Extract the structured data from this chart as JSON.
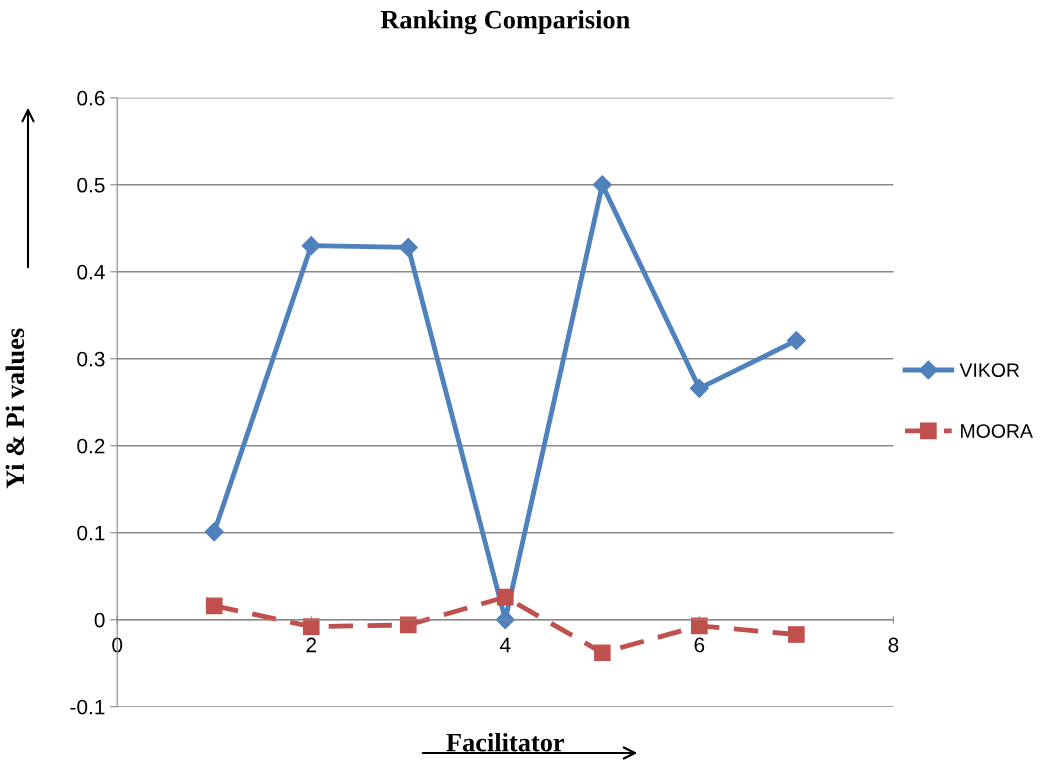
{
  "chart_data": {
    "type": "line",
    "title": "Ranking Comparision",
    "xlabel": "Facilitator",
    "ylabel": "Yi & Pi values",
    "x": [
      1,
      2,
      3,
      4,
      5,
      6,
      7
    ],
    "series": [
      {
        "name": "VIKOR",
        "color": "#4f81bd",
        "marker": "diamond",
        "line_style": "solid",
        "values": [
          0.101,
          0.43,
          0.428,
          0.0,
          0.5,
          0.266,
          0.321
        ]
      },
      {
        "name": "MOORA",
        "color": "#c0504d",
        "marker": "square",
        "line_style": "dashed",
        "values": [
          0.016,
          -0.008,
          -0.006,
          0.026,
          -0.038,
          -0.007,
          -0.017
        ]
      }
    ],
    "xlim": [
      0,
      8
    ],
    "xticks": [
      0,
      2,
      4,
      6,
      8
    ],
    "ylim": [
      -0.1,
      0.6
    ],
    "yticks": [
      -0.1,
      0,
      0.1,
      0.2,
      0.3,
      0.4,
      0.5,
      0.6
    ],
    "grid": "y",
    "legend": "right"
  }
}
